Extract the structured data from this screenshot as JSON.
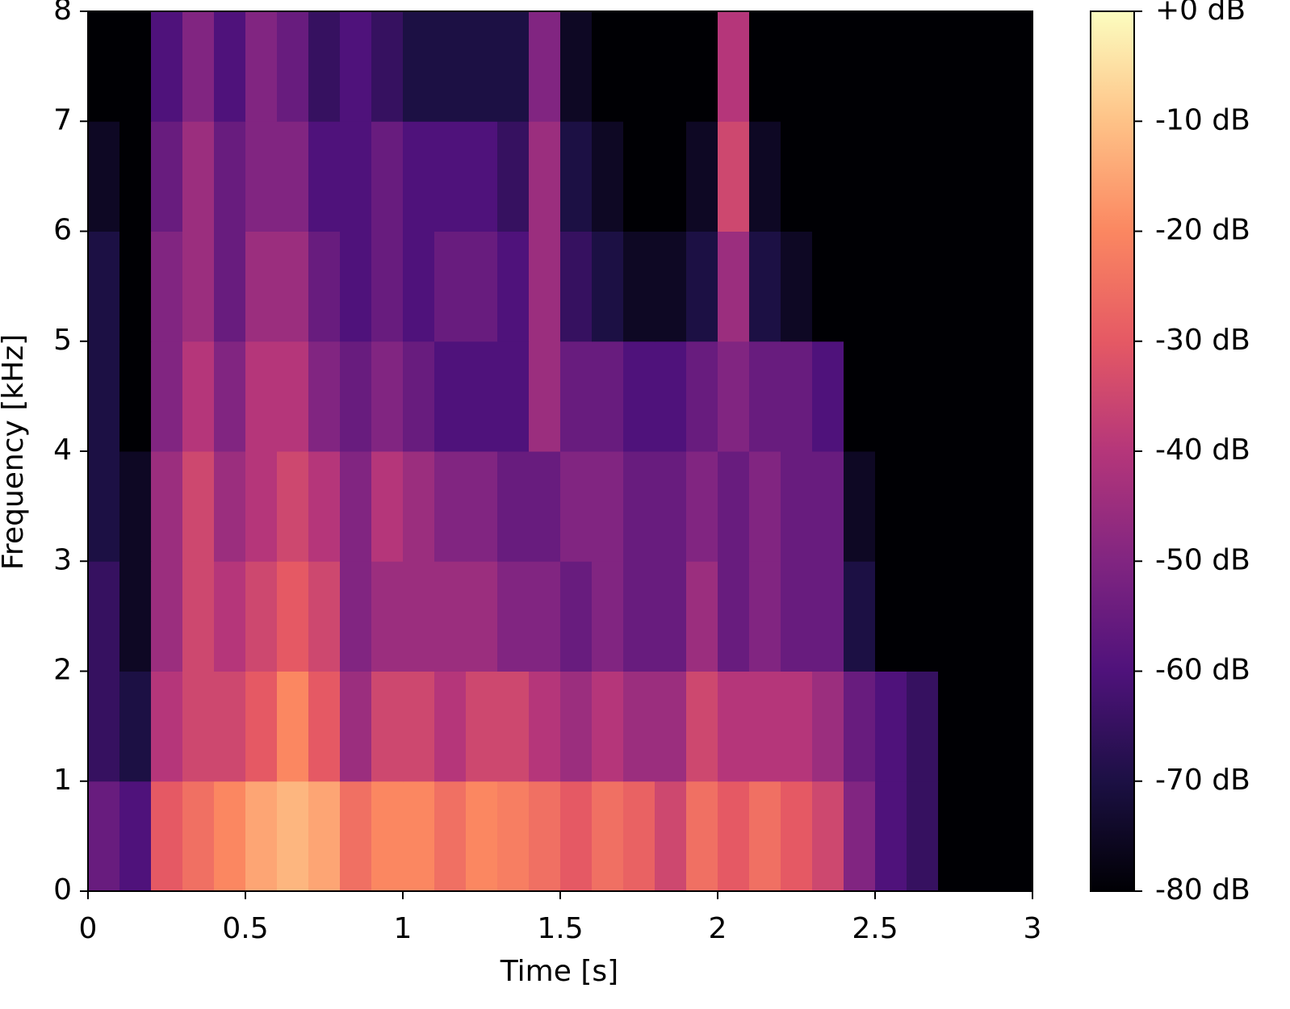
{
  "chart_data": {
    "type": "spectrogram",
    "xlabel": "Time [s]",
    "ylabel": "Frequency [kHz]",
    "xlim": [
      0,
      3
    ],
    "xticks": [
      0,
      0.5,
      1,
      1.5,
      2,
      2.5,
      3
    ],
    "ylim": [
      0,
      8
    ],
    "yticks": [
      0,
      1,
      2,
      3,
      4,
      5,
      6,
      7,
      8
    ],
    "clim": [
      -80,
      0
    ],
    "cticks": [
      {
        "value": 0,
        "label": "+0 dB"
      },
      {
        "value": -10,
        "label": "-10 dB"
      },
      {
        "value": -20,
        "label": "-20 dB"
      },
      {
        "value": -30,
        "label": "-30 dB"
      },
      {
        "value": -40,
        "label": "-40 dB"
      },
      {
        "value": -50,
        "label": "-50 dB"
      },
      {
        "value": -60,
        "label": "-60 dB"
      },
      {
        "value": -70,
        "label": "-70 dB"
      },
      {
        "value": -80,
        "label": "-80 dB"
      }
    ],
    "colormap": [
      "#000004",
      "#1c1044",
      "#4f127b",
      "#812581",
      "#b5367a",
      "#e55964",
      "#fb8761",
      "#fec287",
      "#fcfdbf"
    ],
    "time_bins": [
      0,
      0.1,
      0.2,
      0.3,
      0.4,
      0.5,
      0.6,
      0.7,
      0.8,
      0.9,
      1,
      1.1,
      1.2,
      1.3,
      1.4,
      1.5,
      1.6,
      1.7,
      1.8,
      1.9,
      2,
      2.1,
      2.2,
      2.3,
      2.4,
      2.5,
      2.6,
      2.7,
      2.8,
      2.9,
      3
    ],
    "freq_bins": [
      0,
      1,
      2,
      3,
      4,
      5,
      6,
      7,
      8
    ],
    "values": [
      [
        -55,
        -60,
        -30,
        -25,
        -20,
        -15,
        -12,
        -15,
        -25,
        -20,
        -20,
        -25,
        -20,
        -22,
        -25,
        -30,
        -25,
        -28,
        -35,
        -25,
        -30,
        -25,
        -30,
        -35,
        -50,
        -60,
        -65,
        -80,
        -80,
        -80
      ],
      [
        -65,
        -70,
        -40,
        -35,
        -35,
        -30,
        -20,
        -30,
        -45,
        -35,
        -35,
        -40,
        -35,
        -35,
        -40,
        -45,
        -40,
        -45,
        -45,
        -35,
        -40,
        -40,
        -40,
        -45,
        -55,
        -60,
        -65,
        -80,
        -80,
        -80
      ],
      [
        -65,
        -75,
        -45,
        -35,
        -40,
        -35,
        -30,
        -35,
        -50,
        -45,
        -45,
        -45,
        -45,
        -50,
        -50,
        -55,
        -50,
        -55,
        -55,
        -45,
        -55,
        -50,
        -55,
        -55,
        -70,
        -80,
        -80,
        -80,
        -80,
        -80
      ],
      [
        -70,
        -75,
        -45,
        -35,
        -45,
        -40,
        -35,
        -40,
        -50,
        -40,
        -45,
        -50,
        -50,
        -55,
        -55,
        -50,
        -50,
        -55,
        -55,
        -50,
        -55,
        -50,
        -55,
        -55,
        -75,
        -80,
        -80,
        -80,
        -80,
        -80
      ],
      [
        -70,
        -80,
        -50,
        -40,
        -50,
        -40,
        -40,
        -50,
        -55,
        -50,
        -55,
        -60,
        -60,
        -60,
        -45,
        -55,
        -55,
        -60,
        -60,
        -55,
        -50,
        -55,
        -55,
        -60,
        -80,
        -80,
        -80,
        -80,
        -80,
        -80
      ],
      [
        -70,
        -80,
        -50,
        -45,
        -55,
        -45,
        -45,
        -55,
        -60,
        -55,
        -60,
        -55,
        -55,
        -60,
        -45,
        -65,
        -70,
        -75,
        -75,
        -70,
        -45,
        -70,
        -75,
        -80,
        -80,
        -80,
        -80,
        -80,
        -80,
        -80
      ],
      [
        -75,
        -80,
        -55,
        -45,
        -55,
        -50,
        -50,
        -60,
        -60,
        -55,
        -60,
        -60,
        -60,
        -65,
        -45,
        -70,
        -75,
        -80,
        -80,
        -75,
        -35,
        -75,
        -80,
        -80,
        -80,
        -80,
        -80,
        -80,
        -80,
        -80
      ],
      [
        -80,
        -80,
        -60,
        -50,
        -60,
        -50,
        -55,
        -65,
        -60,
        -65,
        -70,
        -70,
        -70,
        -70,
        -50,
        -75,
        -80,
        -80,
        -80,
        -80,
        -40,
        -80,
        -80,
        -80,
        -80,
        -80,
        -80,
        -80,
        -80,
        -80
      ]
    ]
  }
}
